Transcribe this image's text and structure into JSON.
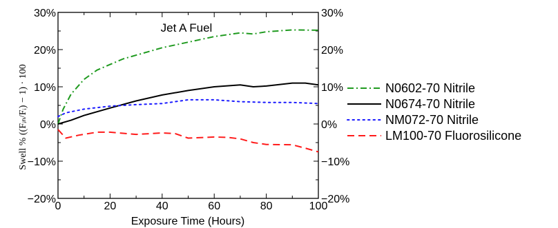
{
  "chart_data": {
    "type": "line",
    "title": "Jet A Fuel",
    "xlabel": "Exposure Time (Hours)",
    "ylabel": "Swell % ((Fᵢₙ/Fᵢ) − 1) · 100",
    "xlim": [
      0,
      100
    ],
    "ylim": [
      -20,
      30
    ],
    "x_ticks": [
      0,
      20,
      40,
      60,
      80,
      100
    ],
    "x_tick_labels": [
      "0",
      "20",
      "40",
      "60",
      "80",
      "100"
    ],
    "y_ticks": [
      -20,
      -10,
      0,
      10,
      20,
      30
    ],
    "y_tick_labels_left": [
      "−20%",
      "−10%",
      "0%",
      "10%",
      "20%",
      "30%"
    ],
    "y_tick_labels_right": [
      "−20%",
      "−10%",
      "0%",
      "10%",
      "20%",
      "30%"
    ],
    "grid": false,
    "legend_position": "right",
    "series": [
      {
        "name": "N0602-70 Nitrile",
        "color": "#1f9a1f",
        "dash": "dash-dot",
        "x": [
          0,
          2,
          5,
          10,
          15,
          20,
          25,
          30,
          40,
          50,
          60,
          70,
          75,
          80,
          90,
          100
        ],
        "y": [
          0,
          4,
          8,
          12,
          14.5,
          16,
          17.5,
          18.5,
          20.5,
          22,
          23.5,
          24.5,
          24.2,
          24.8,
          25.3,
          25.2
        ]
      },
      {
        "name": "N0674-70 Nitrile",
        "color": "#000000",
        "dash": "solid",
        "x": [
          0,
          5,
          10,
          20,
          30,
          40,
          50,
          60,
          70,
          75,
          80,
          90,
          95,
          100
        ],
        "y": [
          0,
          1,
          2.3,
          4.3,
          6.2,
          7.8,
          9,
          10,
          10.5,
          10,
          10.2,
          11,
          11,
          10.5
        ]
      },
      {
        "name": "NM072-70 Nitrile",
        "color": "#1a1aff",
        "dash": "dotted",
        "x": [
          0,
          3,
          10,
          20,
          30,
          40,
          50,
          60,
          70,
          80,
          90,
          100
        ],
        "y": [
          2,
          3,
          4,
          4.8,
          5.2,
          5.5,
          6.5,
          6.5,
          6,
          5.8,
          5.8,
          5.5
        ]
      },
      {
        "name": "LM100-70 Fluorosilicone",
        "color": "#ff1a1a",
        "dash": "dashed",
        "x": [
          0,
          3,
          8,
          15,
          20,
          25,
          30,
          40,
          45,
          50,
          60,
          65,
          70,
          75,
          80,
          90,
          95,
          100
        ],
        "y": [
          -1.5,
          -3.8,
          -3,
          -2.2,
          -2.2,
          -2.5,
          -2.8,
          -2.4,
          -2.6,
          -3.8,
          -3.5,
          -3.6,
          -4,
          -5,
          -5.5,
          -5.6,
          -6.5,
          -7.5
        ]
      }
    ]
  }
}
